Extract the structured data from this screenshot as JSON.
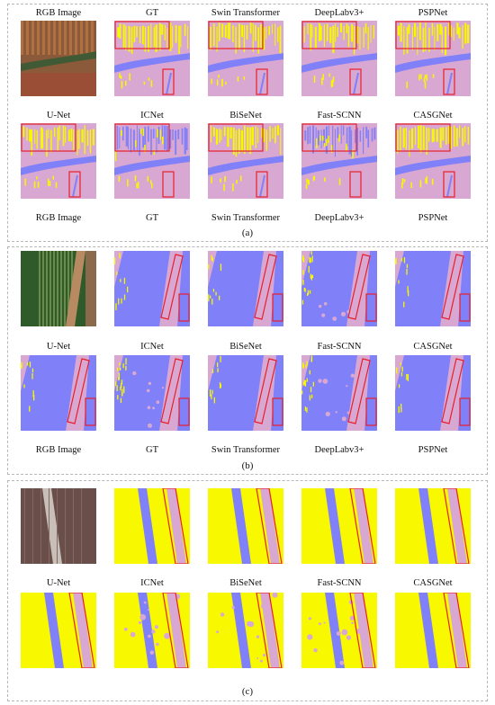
{
  "colors": {
    "pink": "#d8a8d2",
    "blue": "#8080f8",
    "yellow": "#f8f800",
    "red": "#e8202a"
  },
  "panels": [
    {
      "caption": "(a)",
      "row_labels": [
        [
          "RGB Image",
          "GT",
          "Swin Transformer",
          "DeepLabv3+",
          "PSPNet"
        ],
        [
          "U-Net",
          "ICNet",
          "BiSeNet",
          "Fast-SCNN",
          "CASGNet"
        ],
        [
          "RGB Image",
          "GT",
          "Swin Transformer",
          "DeepLabv3+",
          "PSPNet"
        ]
      ]
    },
    {
      "caption": "(b)",
      "row_labels": [
        [
          "U-Net",
          "ICNet",
          "BiSeNet",
          "Fast-SCNN",
          "CASGNet"
        ],
        [
          "RGB Image",
          "GT",
          "Swin Transformer",
          "DeepLabv3+",
          "PSPNet"
        ]
      ]
    },
    {
      "caption": "(c)",
      "row_labels": [
        [
          "U-Net",
          "ICNet",
          "BiSeNet",
          "Fast-SCNN",
          "CASGNet"
        ]
      ]
    }
  ]
}
